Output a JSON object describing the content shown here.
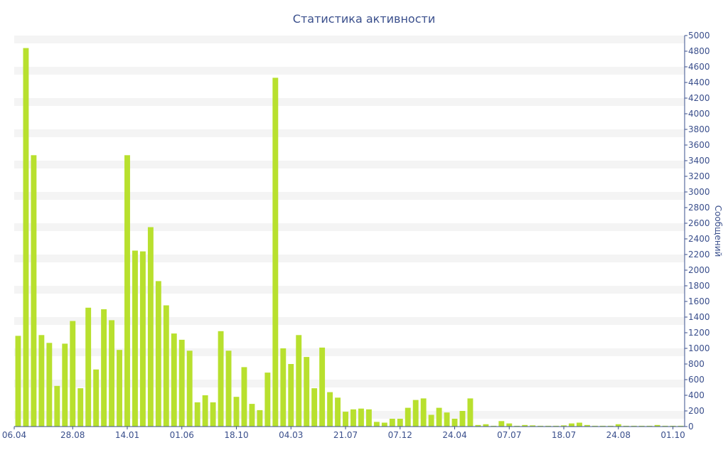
{
  "chart_data": {
    "type": "bar",
    "title": "Статистика активности",
    "ylabel": "Сообщений",
    "xlabel": "",
    "ylim": [
      0,
      5000
    ],
    "yticks": [
      0,
      200,
      400,
      600,
      800,
      1000,
      1200,
      1400,
      1600,
      1800,
      2000,
      2200,
      2400,
      2600,
      2800,
      3000,
      3200,
      3400,
      3600,
      3800,
      4000,
      4200,
      4400,
      4600,
      4800,
      5000
    ],
    "x_tick_labels": [
      {
        "label": "06.04",
        "index": 0
      },
      {
        "label": "28.08",
        "index": 7
      },
      {
        "label": "14.01",
        "index": 14
      },
      {
        "label": "01.06",
        "index": 21
      },
      {
        "label": "18.10",
        "index": 28
      },
      {
        "label": "04.03",
        "index": 35
      },
      {
        "label": "21.07",
        "index": 42
      },
      {
        "label": "07.12",
        "index": 49
      },
      {
        "label": "24.04",
        "index": 56
      },
      {
        "label": "07.07",
        "index": 63
      },
      {
        "label": "18.07",
        "index": 70
      },
      {
        "label": "24.08",
        "index": 77
      },
      {
        "label": "01.10",
        "index": 84
      }
    ],
    "bar_color": "#b8e02e",
    "grid": "alternating horizontal bands",
    "axis_position": "right",
    "values": [
      1160,
      4840,
      3470,
      1170,
      1070,
      520,
      1060,
      1350,
      490,
      1520,
      730,
      1500,
      1360,
      980,
      3470,
      2250,
      2240,
      2550,
      1860,
      1550,
      1190,
      1110,
      970,
      310,
      400,
      310,
      1220,
      970,
      380,
      760,
      290,
      210,
      690,
      4460,
      1000,
      800,
      1170,
      890,
      490,
      1010,
      440,
      370,
      190,
      220,
      230,
      220,
      60,
      50,
      100,
      100,
      240,
      340,
      360,
      150,
      240,
      180,
      100,
      200,
      360,
      20,
      30,
      10,
      70,
      40,
      10,
      20,
      15,
      10,
      10,
      10,
      15,
      40,
      50,
      20,
      10,
      10,
      10,
      30,
      10,
      10,
      10,
      10,
      20,
      10,
      10,
      10
    ]
  }
}
